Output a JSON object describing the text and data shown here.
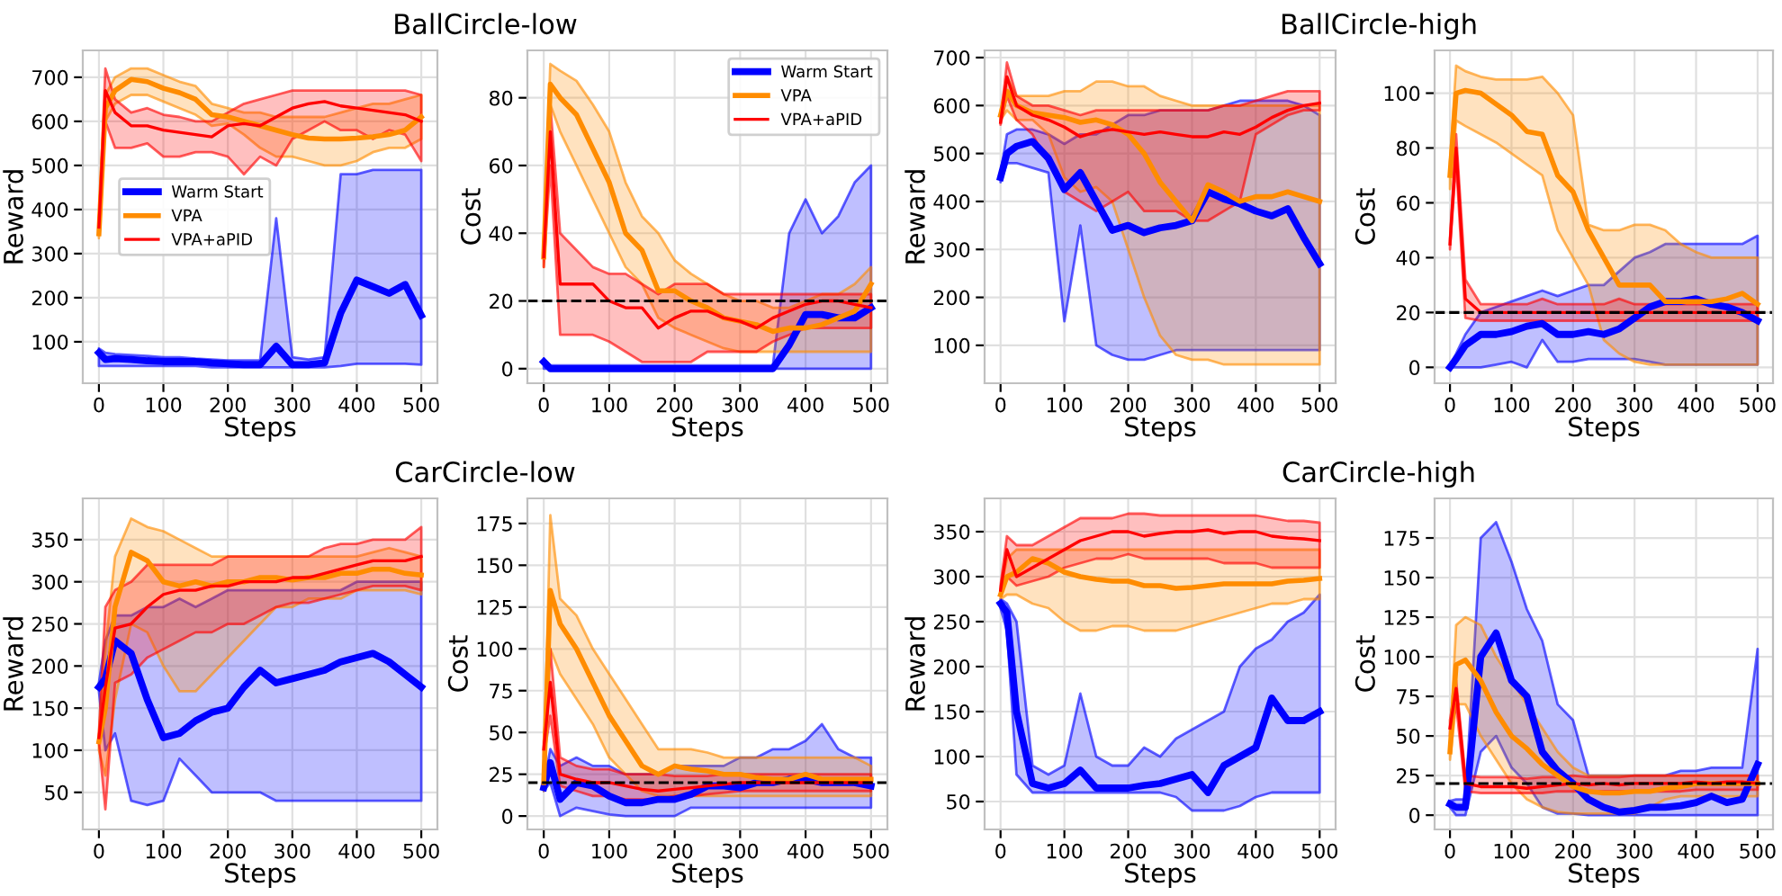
{
  "chart_data": [
    {
      "type": "line",
      "title": "BallCircle-low",
      "xlabel": "Steps",
      "ylabel": "Reward",
      "x": [
        0,
        10,
        25,
        50,
        75,
        100,
        125,
        150,
        175,
        200,
        225,
        250,
        275,
        300,
        325,
        350,
        375,
        400,
        425,
        450,
        475,
        500
      ],
      "xlim": [
        -25,
        525
      ],
      "xticks": [
        0,
        100,
        200,
        300,
        400,
        500
      ],
      "ylim": [
        6,
        761
      ],
      "yticks": [
        100,
        200,
        300,
        400,
        500,
        600,
        700
      ],
      "grid": true,
      "legend": "center left",
      "series": [
        {
          "name": "Warm Start",
          "color": "#0000ff",
          "values": [
            75,
            60,
            62,
            60,
            57,
            55,
            55,
            55,
            52,
            50,
            48,
            48,
            90,
            48,
            48,
            52,
            165,
            240,
            225,
            210,
            230,
            160
          ],
          "lower": [
            45,
            45,
            45,
            45,
            45,
            45,
            45,
            45,
            42,
            42,
            42,
            42,
            42,
            42,
            42,
            42,
            45,
            50,
            50,
            50,
            50,
            48
          ],
          "upper": [
            85,
            75,
            72,
            70,
            68,
            65,
            65,
            62,
            60,
            58,
            58,
            58,
            380,
            65,
            60,
            65,
            480,
            480,
            490,
            490,
            490,
            490
          ]
        },
        {
          "name": "VPA",
          "color": "#ff8c00",
          "values": [
            345,
            630,
            670,
            695,
            690,
            675,
            665,
            650,
            615,
            610,
            600,
            590,
            580,
            570,
            562,
            560,
            560,
            562,
            565,
            570,
            580,
            610
          ],
          "lower": [
            335,
            600,
            640,
            660,
            660,
            645,
            630,
            615,
            590,
            595,
            570,
            540,
            520,
            520,
            510,
            500,
            500,
            510,
            530,
            540,
            540,
            560
          ],
          "upper": [
            355,
            660,
            700,
            720,
            720,
            705,
            690,
            680,
            640,
            630,
            620,
            620,
            610,
            610,
            610,
            610,
            620,
            630,
            640,
            640,
            650,
            660
          ]
        },
        {
          "name": "VPA+aPID",
          "color": "#ff0000",
          "values": [
            360,
            670,
            620,
            590,
            590,
            580,
            575,
            570,
            565,
            590,
            595,
            590,
            610,
            630,
            640,
            645,
            635,
            630,
            625,
            620,
            615,
            600
          ],
          "lower": [
            350,
            600,
            540,
            540,
            550,
            520,
            520,
            530,
            530,
            520,
            480,
            520,
            500,
            560,
            580,
            600,
            580,
            580,
            560,
            580,
            570,
            510
          ],
          "upper": [
            370,
            720,
            650,
            620,
            630,
            615,
            610,
            600,
            600,
            620,
            640,
            650,
            660,
            670,
            670,
            670,
            670,
            670,
            670,
            670,
            670,
            660
          ]
        }
      ]
    },
    {
      "type": "line",
      "xlabel": "Steps",
      "ylabel": "Cost",
      "x": [
        0,
        10,
        25,
        50,
        75,
        100,
        125,
        150,
        175,
        200,
        225,
        250,
        275,
        300,
        325,
        350,
        375,
        400,
        425,
        450,
        475,
        500
      ],
      "xlim": [
        -25,
        525
      ],
      "xticks": [
        0,
        100,
        200,
        300,
        400,
        500
      ],
      "ylim": [
        -4.3,
        94
      ],
      "yticks": [
        0,
        20,
        40,
        60,
        80
      ],
      "grid": true,
      "legend": "top right",
      "ref_lines": [
        {
          "axis": "y",
          "value": 20,
          "color": "#000000",
          "line_style": "dashed"
        }
      ],
      "series": [
        {
          "name": "Warm Start",
          "color": "#0000ff",
          "values": [
            2,
            0,
            0,
            0,
            0,
            0,
            0,
            0,
            0,
            0,
            0,
            0,
            0,
            0,
            0,
            0,
            7,
            16,
            16,
            15,
            15,
            18
          ],
          "lower": [
            0,
            0,
            0,
            0,
            0,
            0,
            0,
            0,
            0,
            0,
            0,
            0,
            0,
            0,
            0,
            0,
            0,
            0,
            0,
            0,
            0,
            0
          ],
          "upper": [
            3,
            1,
            1,
            1,
            1,
            1,
            1,
            1,
            1,
            1,
            1,
            1,
            1,
            1,
            1,
            1,
            40,
            50,
            40,
            45,
            55,
            60
          ]
        },
        {
          "name": "VPA",
          "color": "#ff8c00",
          "values": [
            33,
            84,
            80,
            75,
            65,
            55,
            40,
            35,
            23,
            23,
            20,
            18,
            15,
            14,
            13,
            11,
            12,
            12,
            13,
            15,
            17,
            25
          ],
          "lower": [
            30,
            78,
            70,
            60,
            50,
            40,
            30,
            25,
            15,
            12,
            10,
            8,
            6,
            5,
            5,
            5,
            5,
            5,
            5,
            5,
            5,
            5
          ],
          "upper": [
            36,
            90,
            88,
            85,
            78,
            70,
            55,
            45,
            40,
            32,
            28,
            25,
            22,
            20,
            20,
            18,
            18,
            20,
            22,
            22,
            25,
            30
          ]
        },
        {
          "name": "VPA+aPID",
          "color": "#ff0000",
          "values": [
            33,
            70,
            25,
            25,
            25,
            20,
            18,
            18,
            12,
            15,
            17,
            17,
            15,
            14,
            12,
            15,
            17,
            19,
            20,
            20,
            19,
            18
          ],
          "lower": [
            30,
            60,
            10,
            10,
            10,
            8,
            5,
            2,
            2,
            2,
            2,
            5,
            5,
            5,
            5,
            8,
            10,
            12,
            12,
            12,
            12,
            12
          ],
          "upper": [
            36,
            78,
            40,
            35,
            30,
            28,
            28,
            25,
            22,
            25,
            25,
            25,
            22,
            22,
            22,
            22,
            22,
            22,
            22,
            22,
            22,
            22
          ]
        }
      ]
    },
    {
      "type": "line",
      "title": "BallCircle-high",
      "xlabel": "Steps",
      "ylabel": "Reward",
      "x": [
        0,
        10,
        25,
        50,
        75,
        100,
        125,
        150,
        175,
        200,
        225,
        250,
        275,
        300,
        325,
        350,
        375,
        400,
        425,
        450,
        475,
        500
      ],
      "xlim": [
        -25,
        525
      ],
      "xticks": [
        0,
        100,
        200,
        300,
        400,
        500
      ],
      "ylim": [
        21,
        715
      ],
      "yticks": [
        100,
        200,
        300,
        400,
        500,
        600,
        700
      ],
      "grid": true,
      "series": [
        {
          "color": "#0000ff",
          "values": [
            450,
            500,
            515,
            525,
            490,
            425,
            460,
            400,
            340,
            350,
            335,
            345,
            350,
            360,
            420,
            405,
            395,
            380,
            370,
            385,
            325,
            270
          ],
          "lower": [
            440,
            480,
            480,
            470,
            460,
            150,
            350,
            100,
            80,
            70,
            70,
            80,
            90,
            90,
            90,
            90,
            90,
            90,
            90,
            90,
            90,
            90
          ],
          "upper": [
            460,
            540,
            550,
            550,
            540,
            520,
            540,
            540,
            560,
            580,
            580,
            590,
            590,
            590,
            590,
            600,
            610,
            610,
            610,
            610,
            600,
            580
          ]
        },
        {
          "color": "#ff8c00",
          "values": [
            580,
            630,
            600,
            585,
            580,
            575,
            565,
            570,
            560,
            540,
            500,
            440,
            400,
            360,
            435,
            420,
            400,
            410,
            410,
            420,
            410,
            400
          ],
          "lower": [
            570,
            590,
            570,
            570,
            540,
            450,
            420,
            430,
            400,
            300,
            200,
            120,
            80,
            70,
            70,
            60,
            60,
            60,
            60,
            60,
            60,
            60
          ],
          "upper": [
            590,
            660,
            620,
            620,
            620,
            630,
            630,
            650,
            650,
            640,
            640,
            620,
            610,
            600,
            600,
            600,
            600,
            600,
            600,
            600,
            600,
            600
          ]
        },
        {
          "color": "#ff0000",
          "values": [
            565,
            660,
            600,
            580,
            570,
            555,
            535,
            545,
            550,
            545,
            540,
            545,
            540,
            535,
            535,
            545,
            540,
            555,
            575,
            590,
            600,
            605
          ],
          "lower": [
            560,
            620,
            570,
            540,
            480,
            420,
            400,
            380,
            400,
            420,
            380,
            380,
            380,
            360,
            360,
            380,
            400,
            540,
            560,
            580,
            590,
            590
          ],
          "upper": [
            570,
            690,
            620,
            600,
            600,
            590,
            580,
            590,
            590,
            590,
            590,
            590,
            590,
            590,
            590,
            600,
            600,
            610,
            620,
            630,
            630,
            630
          ]
        }
      ]
    },
    {
      "type": "line",
      "xlabel": "Steps",
      "ylabel": "Cost",
      "x": [
        0,
        10,
        25,
        50,
        75,
        100,
        125,
        150,
        175,
        200,
        225,
        250,
        275,
        300,
        325,
        350,
        375,
        400,
        425,
        450,
        475,
        500
      ],
      "xlim": [
        -25,
        525
      ],
      "xticks": [
        0,
        100,
        200,
        300,
        400,
        500
      ],
      "ylim": [
        -5.8,
        115.6
      ],
      "yticks": [
        0,
        20,
        40,
        60,
        80,
        100
      ],
      "grid": true,
      "ref_lines": [
        {
          "axis": "y",
          "value": 20,
          "color": "#000000",
          "line_style": "dashed"
        }
      ],
      "series": [
        {
          "color": "#0000ff",
          "values": [
            0,
            3,
            8,
            12,
            12,
            13,
            15,
            16,
            12,
            12,
            13,
            12,
            14,
            18,
            22,
            24,
            24,
            25,
            23,
            22,
            20,
            17
          ],
          "lower": [
            0,
            0,
            0,
            0,
            1,
            2,
            0,
            10,
            2,
            2,
            3,
            3,
            3,
            3,
            2,
            1,
            1,
            1,
            1,
            1,
            1,
            1
          ],
          "upper": [
            1,
            5,
            12,
            20,
            22,
            24,
            26,
            28,
            26,
            28,
            30,
            30,
            35,
            40,
            42,
            45,
            45,
            45,
            45,
            45,
            45,
            48
          ]
        },
        {
          "color": "#ff8c00",
          "values": [
            70,
            100,
            101,
            100,
            96,
            92,
            86,
            85,
            70,
            64,
            50,
            40,
            30,
            30,
            30,
            24,
            24,
            24,
            24,
            25,
            27,
            23
          ],
          "lower": [
            65,
            90,
            88,
            85,
            82,
            78,
            74,
            70,
            50,
            40,
            30,
            10,
            5,
            2,
            1,
            1,
            1,
            1,
            1,
            1,
            1,
            1
          ],
          "upper": [
            75,
            110,
            108,
            106,
            105,
            105,
            105,
            106,
            100,
            92,
            52,
            50,
            50,
            52,
            52,
            50,
            45,
            42,
            40,
            40,
            40,
            40
          ]
        },
        {
          "color": "#ff0000",
          "values": [
            45,
            80,
            25,
            20,
            20,
            20,
            20,
            20,
            20,
            20,
            20,
            20,
            20,
            20,
            20,
            20,
            20,
            20,
            20,
            20,
            20,
            20
          ],
          "lower": [
            43,
            75,
            18,
            17,
            17,
            17,
            17,
            17,
            17,
            17,
            17,
            17,
            17,
            17,
            17,
            17,
            17,
            17,
            17,
            17,
            17,
            17
          ],
          "upper": [
            47,
            85,
            32,
            23,
            23,
            23,
            23,
            25,
            23,
            23,
            23,
            23,
            25,
            23,
            23,
            23,
            23,
            23,
            23,
            23,
            23,
            23
          ]
        }
      ]
    },
    {
      "type": "line",
      "title": "CarCircle-low",
      "xlabel": "Steps",
      "ylabel": "Reward",
      "x": [
        0,
        10,
        25,
        50,
        75,
        100,
        125,
        150,
        175,
        200,
        225,
        250,
        275,
        300,
        325,
        350,
        375,
        400,
        425,
        450,
        475,
        500
      ],
      "xlim": [
        -25,
        525
      ],
      "xticks": [
        0,
        100,
        200,
        300,
        400,
        500
      ],
      "ylim": [
        6,
        399
      ],
      "yticks": [
        50,
        100,
        150,
        200,
        250,
        300,
        350
      ],
      "grid": true,
      "series": [
        {
          "color": "#0000ff",
          "values": [
            175,
            185,
            230,
            215,
            160,
            115,
            120,
            135,
            145,
            150,
            175,
            195,
            180,
            185,
            190,
            195,
            205,
            210,
            215,
            205,
            190,
            175
          ],
          "lower": [
            170,
            100,
            120,
            40,
            35,
            40,
            90,
            70,
            50,
            50,
            50,
            50,
            40,
            40,
            40,
            40,
            40,
            40,
            40,
            40,
            40,
            40
          ],
          "upper": [
            180,
            230,
            260,
            260,
            270,
            270,
            280,
            270,
            280,
            290,
            290,
            290,
            290,
            290,
            290,
            290,
            290,
            300,
            300,
            300,
            300,
            300
          ]
        },
        {
          "color": "#ff8c00",
          "values": [
            110,
            150,
            270,
            335,
            325,
            300,
            295,
            300,
            295,
            300,
            300,
            305,
            305,
            302,
            305,
            305,
            310,
            310,
            315,
            315,
            310,
            308
          ],
          "lower": [
            100,
            70,
            160,
            250,
            240,
            200,
            170,
            170,
            190,
            210,
            230,
            250,
            270,
            270,
            280,
            280,
            280,
            290,
            290,
            290,
            290,
            285
          ],
          "upper": [
            120,
            220,
            330,
            375,
            365,
            360,
            350,
            340,
            330,
            330,
            330,
            330,
            330,
            330,
            330,
            330,
            330,
            330,
            335,
            340,
            335,
            330
          ]
        },
        {
          "color": "#ff0000",
          "values": [
            115,
            175,
            245,
            250,
            270,
            285,
            290,
            290,
            295,
            295,
            300,
            300,
            300,
            305,
            305,
            310,
            315,
            320,
            325,
            325,
            325,
            330
          ],
          "lower": [
            110,
            30,
            180,
            190,
            210,
            220,
            230,
            240,
            240,
            250,
            250,
            260,
            270,
            275,
            275,
            280,
            285,
            290,
            295,
            295,
            295,
            290
          ],
          "upper": [
            120,
            270,
            290,
            300,
            320,
            320,
            320,
            320,
            320,
            330,
            330,
            330,
            330,
            330,
            330,
            340,
            345,
            345,
            350,
            350,
            350,
            365
          ]
        }
      ]
    },
    {
      "type": "line",
      "xlabel": "Steps",
      "ylabel": "Cost",
      "x": [
        0,
        10,
        25,
        50,
        75,
        100,
        125,
        150,
        175,
        200,
        225,
        250,
        275,
        300,
        325,
        350,
        375,
        400,
        425,
        450,
        475,
        500
      ],
      "xlim": [
        -25,
        525
      ],
      "xticks": [
        0,
        100,
        200,
        300,
        400,
        500
      ],
      "ylim": [
        -8,
        190
      ],
      "yticks": [
        0,
        25,
        50,
        75,
        100,
        125,
        150,
        175
      ],
      "grid": true,
      "ref_lines": [
        {
          "axis": "y",
          "value": 20,
          "color": "#000000",
          "line_style": "dashed"
        }
      ],
      "series": [
        {
          "color": "#0000ff",
          "values": [
            17,
            32,
            10,
            20,
            18,
            12,
            8,
            8,
            10,
            10,
            13,
            18,
            18,
            17,
            20,
            20,
            22,
            22,
            20,
            20,
            20,
            18
          ],
          "lower": [
            15,
            20,
            0,
            5,
            3,
            1,
            0,
            0,
            0,
            0,
            5,
            5,
            5,
            5,
            5,
            5,
            5,
            5,
            5,
            5,
            5,
            5
          ],
          "upper": [
            19,
            40,
            30,
            35,
            30,
            30,
            25,
            25,
            25,
            30,
            30,
            30,
            30,
            35,
            35,
            40,
            40,
            45,
            55,
            40,
            35,
            35
          ]
        },
        {
          "color": "#ff8c00",
          "values": [
            20,
            135,
            115,
            100,
            80,
            60,
            45,
            30,
            25,
            30,
            28,
            27,
            25,
            25,
            23,
            22,
            22,
            25,
            22,
            22,
            22,
            22
          ],
          "lower": [
            15,
            100,
            85,
            70,
            55,
            35,
            25,
            15,
            12,
            12,
            12,
            12,
            12,
            12,
            12,
            12,
            12,
            12,
            12,
            12,
            12,
            12
          ],
          "upper": [
            25,
            180,
            130,
            120,
            100,
            85,
            70,
            55,
            40,
            40,
            40,
            38,
            35,
            35,
            35,
            35,
            35,
            35,
            35,
            35,
            35,
            30
          ]
        },
        {
          "color": "#ff0000",
          "values": [
            40,
            80,
            25,
            22,
            20,
            20,
            18,
            16,
            15,
            16,
            17,
            18,
            19,
            20,
            20,
            20,
            20,
            20,
            20,
            20,
            20,
            20
          ],
          "lower": [
            35,
            60,
            18,
            15,
            12,
            12,
            10,
            10,
            10,
            12,
            12,
            13,
            14,
            15,
            15,
            15,
            15,
            15,
            15,
            15,
            15,
            15
          ],
          "upper": [
            45,
            100,
            35,
            30,
            28,
            28,
            25,
            25,
            25,
            24,
            24,
            24,
            25,
            25,
            25,
            25,
            25,
            25,
            25,
            25,
            25,
            25
          ]
        }
      ]
    },
    {
      "type": "line",
      "title": "CarCircle-high",
      "xlabel": "Steps",
      "ylabel": "Reward",
      "x": [
        0,
        10,
        25,
        50,
        75,
        100,
        125,
        150,
        175,
        200,
        225,
        250,
        275,
        300,
        325,
        350,
        375,
        400,
        425,
        450,
        475,
        500
      ],
      "xlim": [
        -25,
        525
      ],
      "xticks": [
        0,
        100,
        200,
        300,
        400,
        500
      ],
      "ylim": [
        19,
        387
      ],
      "yticks": [
        50,
        100,
        150,
        200,
        250,
        300,
        350
      ],
      "grid": true,
      "series": [
        {
          "color": "#0000ff",
          "values": [
            270,
            260,
            150,
            70,
            65,
            70,
            85,
            65,
            65,
            65,
            68,
            70,
            75,
            80,
            60,
            90,
            100,
            110,
            165,
            140,
            140,
            150
          ],
          "lower": [
            265,
            240,
            80,
            60,
            60,
            60,
            60,
            60,
            60,
            60,
            60,
            60,
            55,
            40,
            40,
            40,
            45,
            55,
            60,
            60,
            60,
            60
          ],
          "upper": [
            275,
            270,
            250,
            90,
            80,
            90,
            170,
            100,
            90,
            90,
            110,
            100,
            120,
            130,
            140,
            150,
            200,
            220,
            230,
            250,
            260,
            280
          ]
        },
        {
          "color": "#ff8c00",
          "values": [
            280,
            300,
            305,
            320,
            315,
            305,
            300,
            297,
            295,
            295,
            290,
            290,
            287,
            288,
            290,
            292,
            292,
            292,
            292,
            295,
            296,
            298
          ],
          "lower": [
            275,
            280,
            280,
            270,
            265,
            250,
            240,
            240,
            245,
            245,
            240,
            240,
            240,
            245,
            250,
            255,
            260,
            265,
            270,
            270,
            275,
            275
          ],
          "upper": [
            285,
            320,
            330,
            330,
            330,
            330,
            330,
            330,
            330,
            330,
            330,
            330,
            330,
            330,
            330,
            330,
            330,
            330,
            330,
            330,
            330,
            330
          ]
        },
        {
          "color": "#ff0000",
          "values": [
            285,
            330,
            300,
            310,
            320,
            330,
            340,
            345,
            350,
            350,
            345,
            348,
            350,
            350,
            352,
            348,
            350,
            350,
            345,
            343,
            342,
            340
          ],
          "lower": [
            280,
            300,
            290,
            295,
            300,
            310,
            315,
            320,
            320,
            325,
            320,
            320,
            320,
            320,
            320,
            315,
            315,
            315,
            310,
            310,
            310,
            310
          ],
          "upper": [
            290,
            345,
            335,
            335,
            345,
            355,
            365,
            365,
            365,
            370,
            370,
            368,
            368,
            368,
            368,
            368,
            368,
            368,
            365,
            362,
            362,
            360
          ]
        }
      ]
    },
    {
      "type": "line",
      "xlabel": "Steps",
      "ylabel": "Cost",
      "x": [
        0,
        10,
        25,
        50,
        75,
        100,
        125,
        150,
        175,
        200,
        225,
        250,
        275,
        300,
        325,
        350,
        375,
        400,
        425,
        450,
        475,
        500
      ],
      "xlim": [
        -25,
        525
      ],
      "xticks": [
        0,
        100,
        200,
        300,
        400,
        500
      ],
      "ylim": [
        -9,
        200
      ],
      "yticks": [
        0,
        25,
        50,
        75,
        100,
        125,
        150,
        175
      ],
      "grid": true,
      "ref_lines": [
        {
          "axis": "y",
          "value": 20,
          "color": "#000000",
          "line_style": "dashed"
        }
      ],
      "series": [
        {
          "color": "#0000ff",
          "values": [
            7,
            5,
            5,
            100,
            115,
            85,
            75,
            40,
            28,
            20,
            10,
            5,
            2,
            3,
            5,
            5,
            6,
            8,
            12,
            8,
            10,
            32
          ],
          "lower": [
            5,
            0,
            0,
            40,
            50,
            30,
            20,
            5,
            1,
            1,
            0,
            0,
            0,
            0,
            0,
            0,
            0,
            0,
            0,
            0,
            0,
            0
          ],
          "upper": [
            9,
            10,
            10,
            175,
            185,
            160,
            130,
            110,
            70,
            60,
            25,
            25,
            25,
            25,
            25,
            25,
            28,
            28,
            30,
            30,
            30,
            105
          ]
        },
        {
          "color": "#ff8c00",
          "values": [
            40,
            95,
            98,
            85,
            65,
            50,
            42,
            32,
            25,
            18,
            15,
            14,
            14,
            15,
            15,
            17,
            18,
            20,
            20,
            20,
            20,
            20
          ],
          "lower": [
            35,
            70,
            70,
            50,
            35,
            20,
            10,
            5,
            2,
            1,
            1,
            1,
            1,
            1,
            5,
            10,
            12,
            12,
            12,
            12,
            12,
            12
          ],
          "upper": [
            45,
            120,
            125,
            120,
            100,
            85,
            70,
            55,
            40,
            30,
            25,
            25,
            25,
            25,
            25,
            25,
            25,
            25,
            25,
            25,
            25,
            25
          ]
        },
        {
          "color": "#ff0000",
          "values": [
            55,
            80,
            20,
            18,
            18,
            18,
            17,
            18,
            19,
            20,
            19,
            20,
            19,
            20,
            20,
            20,
            20,
            21,
            20,
            21,
            21,
            20
          ],
          "lower": [
            50,
            70,
            15,
            14,
            14,
            14,
            14,
            14,
            15,
            15,
            15,
            15,
            15,
            15,
            15,
            15,
            15,
            16,
            16,
            16,
            16,
            16
          ],
          "upper": [
            60,
            85,
            25,
            24,
            24,
            24,
            23,
            24,
            24,
            25,
            24,
            24,
            24,
            25,
            25,
            25,
            25,
            25,
            25,
            25,
            25,
            25
          ]
        }
      ]
    }
  ]
}
